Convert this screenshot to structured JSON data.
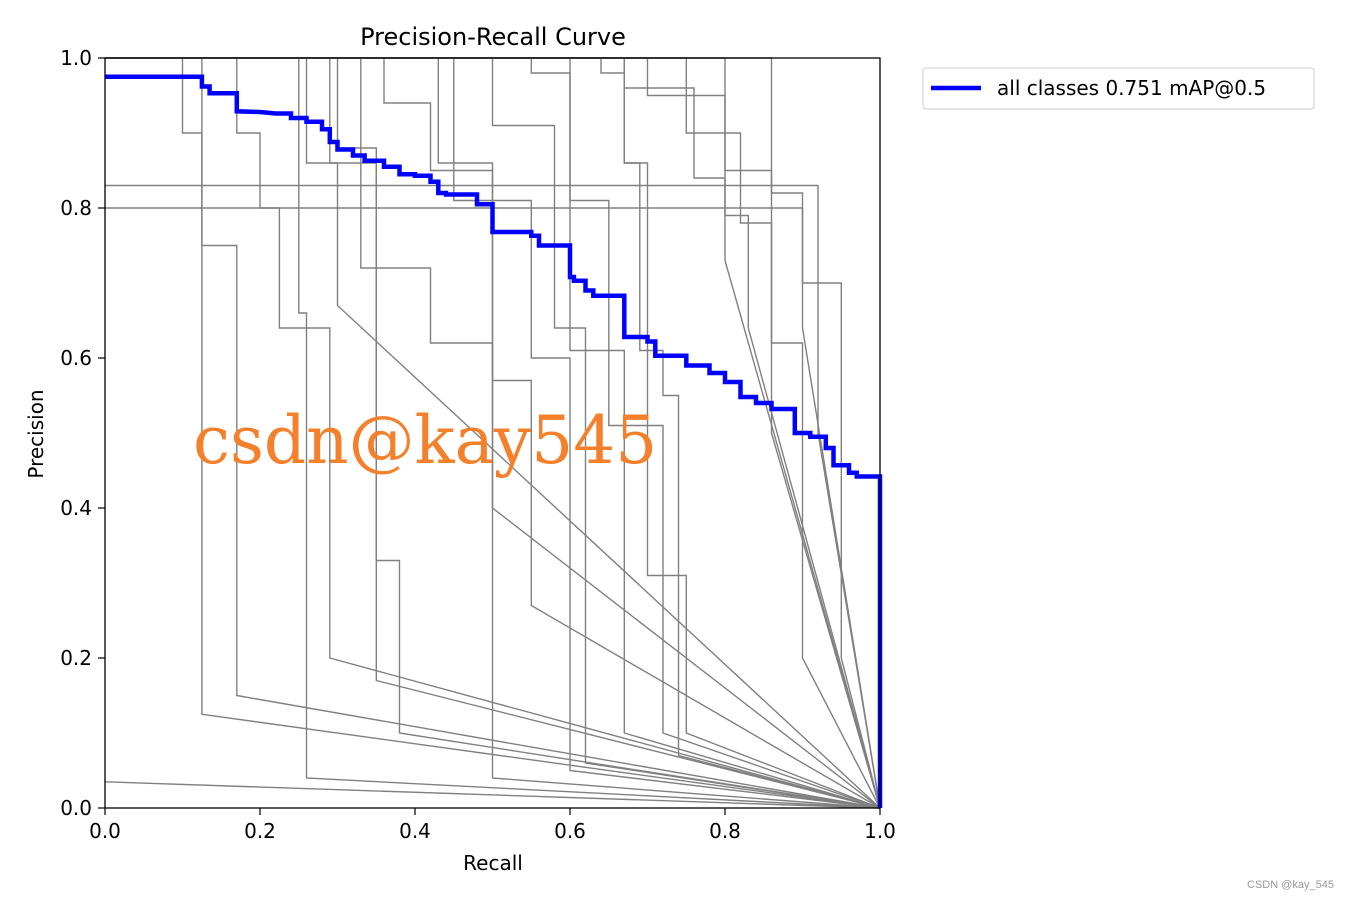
{
  "chart_data": {
    "type": "line",
    "title": "Precision-Recall Curve",
    "xlabel": "Recall",
    "ylabel": "Precision",
    "xlim": [
      0,
      1
    ],
    "ylim": [
      0,
      1
    ],
    "xticks": [
      "0.0",
      "0.2",
      "0.4",
      "0.6",
      "0.8",
      "1.0"
    ],
    "yticks": [
      "0.0",
      "0.2",
      "0.4",
      "0.6",
      "0.8",
      "1.0"
    ],
    "grid": false,
    "legend_position": "outside-top-right",
    "legend": [
      {
        "label": "all classes 0.751 mAP@0.5",
        "color": "#0000ff"
      }
    ],
    "series": [
      {
        "name": "all classes 0.751 mAP@0.5",
        "color": "#0000ff",
        "role": "summary",
        "x": [
          0.0,
          0.125,
          0.125,
          0.135,
          0.135,
          0.17,
          0.17,
          0.2,
          0.22,
          0.24,
          0.24,
          0.26,
          0.26,
          0.28,
          0.28,
          0.29,
          0.29,
          0.3,
          0.3,
          0.32,
          0.32,
          0.335,
          0.335,
          0.36,
          0.36,
          0.38,
          0.38,
          0.4,
          0.4,
          0.42,
          0.42,
          0.43,
          0.43,
          0.44,
          0.44,
          0.48,
          0.48,
          0.5,
          0.5,
          0.55,
          0.55,
          0.56,
          0.56,
          0.6,
          0.6,
          0.605,
          0.605,
          0.62,
          0.62,
          0.63,
          0.63,
          0.67,
          0.67,
          0.7,
          0.7,
          0.71,
          0.71,
          0.75,
          0.75,
          0.78,
          0.78,
          0.8,
          0.8,
          0.82,
          0.82,
          0.84,
          0.84,
          0.86,
          0.86,
          0.89,
          0.89,
          0.91,
          0.91,
          0.93,
          0.93,
          0.94,
          0.94,
          0.96,
          0.96,
          0.97,
          0.97,
          1.0,
          1.0
        ],
        "y": [
          0.975,
          0.975,
          0.962,
          0.962,
          0.953,
          0.953,
          0.929,
          0.928,
          0.926,
          0.926,
          0.92,
          0.92,
          0.915,
          0.915,
          0.905,
          0.905,
          0.888,
          0.888,
          0.878,
          0.878,
          0.87,
          0.87,
          0.863,
          0.863,
          0.855,
          0.855,
          0.845,
          0.845,
          0.843,
          0.843,
          0.835,
          0.835,
          0.82,
          0.82,
          0.818,
          0.818,
          0.805,
          0.805,
          0.768,
          0.768,
          0.763,
          0.763,
          0.75,
          0.75,
          0.708,
          0.708,
          0.703,
          0.703,
          0.69,
          0.69,
          0.683,
          0.683,
          0.628,
          0.628,
          0.622,
          0.622,
          0.603,
          0.603,
          0.59,
          0.59,
          0.58,
          0.58,
          0.568,
          0.568,
          0.548,
          0.548,
          0.54,
          0.54,
          0.532,
          0.532,
          0.5,
          0.5,
          0.495,
          0.495,
          0.48,
          0.48,
          0.457,
          0.457,
          0.447,
          0.447,
          0.442,
          0.442,
          0.0
        ]
      },
      {
        "color": "#808080",
        "x": [
          0.0,
          0.1,
          0.1,
          0.125,
          0.125,
          1.0
        ],
        "y": [
          1.0,
          1.0,
          0.9,
          0.9,
          0.125,
          0.0
        ]
      },
      {
        "color": "#808080",
        "x": [
          0.0,
          0.125,
          0.125,
          0.17,
          0.17,
          1.0
        ],
        "y": [
          1.0,
          1.0,
          0.75,
          0.75,
          0.15,
          0.0
        ]
      },
      {
        "color": "#808080",
        "x": [
          0.0,
          0.17,
          0.17,
          0.2,
          0.2,
          0.225,
          0.225,
          0.26,
          0.26,
          1.0
        ],
        "y": [
          1.0,
          1.0,
          0.9,
          0.9,
          0.8,
          0.8,
          0.64,
          0.64,
          0.04,
          0.0
        ]
      },
      {
        "color": "#808080",
        "x": [
          0.0,
          0.25,
          0.25,
          0.26,
          0.26,
          0.29,
          0.29,
          1.0
        ],
        "y": [
          1.0,
          1.0,
          0.66,
          0.66,
          0.64,
          0.64,
          0.2,
          0.0
        ]
      },
      {
        "color": "#808080",
        "x": [
          0.0,
          0.26,
          0.26,
          0.3,
          0.3,
          1.0
        ],
        "y": [
          1.0,
          1.0,
          0.86,
          0.86,
          0.67,
          0.0
        ]
      },
      {
        "color": "#808080",
        "x": [
          0.0,
          0.29,
          0.29,
          0.35,
          0.35,
          0.38,
          0.38,
          1.0
        ],
        "y": [
          1.0,
          1.0,
          0.86,
          0.86,
          0.33,
          0.33,
          0.1,
          0.0
        ]
      },
      {
        "color": "#808080",
        "x": [
          0.0,
          0.3,
          0.3,
          0.35,
          0.35,
          1.0
        ],
        "y": [
          1.0,
          1.0,
          0.88,
          0.88,
          0.17,
          0.0
        ]
      },
      {
        "color": "#808080",
        "x": [
          0.0,
          0.33,
          0.33,
          0.42,
          0.42,
          0.5,
          0.5,
          1.0
        ],
        "y": [
          1.0,
          1.0,
          0.72,
          0.72,
          0.62,
          0.62,
          0.04,
          0.0
        ]
      },
      {
        "color": "#808080",
        "x": [
          0.0,
          0.36,
          0.36,
          0.42,
          0.42,
          0.5,
          0.5,
          1.0
        ],
        "y": [
          1.0,
          1.0,
          0.94,
          0.94,
          0.85,
          0.85,
          0.4,
          0.0
        ]
      },
      {
        "color": "#808080",
        "x": [
          0.0,
          0.43,
          0.43,
          0.5,
          0.5,
          0.55,
          0.55,
          1.0
        ],
        "y": [
          1.0,
          1.0,
          0.86,
          0.86,
          0.57,
          0.57,
          0.27,
          0.0
        ]
      },
      {
        "color": "#808080",
        "x": [
          0.0,
          0.45,
          0.45,
          0.55,
          0.55,
          0.6,
          0.6,
          1.0
        ],
        "y": [
          1.0,
          1.0,
          0.81,
          0.81,
          0.6,
          0.6,
          0.05,
          0.0
        ]
      },
      {
        "color": "#808080",
        "x": [
          0.0,
          0.5,
          0.5,
          0.58,
          0.58,
          0.62,
          0.62,
          1.0
        ],
        "y": [
          1.0,
          1.0,
          0.91,
          0.91,
          0.64,
          0.64,
          0.06,
          0.0
        ]
      },
      {
        "color": "#808080",
        "x": [
          0.0,
          0.55,
          0.55,
          0.6,
          0.6,
          0.67,
          0.67,
          1.0
        ],
        "y": [
          1.0,
          1.0,
          0.98,
          0.98,
          0.61,
          0.61,
          0.1,
          0.0
        ]
      },
      {
        "color": "#808080",
        "x": [
          0.0,
          0.6,
          0.6,
          0.65,
          0.65,
          0.72,
          0.72,
          1.0
        ],
        "y": [
          1.0,
          1.0,
          0.81,
          0.81,
          0.51,
          0.51,
          0.1,
          0.0
        ]
      },
      {
        "color": "#808080",
        "x": [
          0.0,
          0.64,
          0.64,
          0.67,
          0.67,
          0.7,
          0.7,
          0.75,
          0.75,
          1.0
        ],
        "y": [
          1.0,
          1.0,
          0.98,
          0.98,
          0.86,
          0.86,
          0.31,
          0.31,
          0.1,
          0.0
        ]
      },
      {
        "color": "#808080",
        "x": [
          0.0,
          0.67,
          0.67,
          0.69,
          0.69,
          0.72,
          0.72,
          0.74,
          0.74,
          1.0
        ],
        "y": [
          1.0,
          1.0,
          0.86,
          0.86,
          0.61,
          0.61,
          0.55,
          0.55,
          0.07,
          0.0
        ]
      },
      {
        "color": "#808080",
        "x": [
          0.0,
          0.67,
          0.67,
          0.76,
          0.76,
          0.8,
          0.8,
          1.0
        ],
        "y": [
          1.0,
          1.0,
          0.96,
          0.96,
          0.84,
          0.84,
          0.73,
          0.0
        ]
      },
      {
        "color": "#808080",
        "x": [
          0.0,
          0.7,
          0.7,
          0.8,
          0.8,
          0.83,
          0.83,
          1.0
        ],
        "y": [
          1.0,
          1.0,
          0.95,
          0.95,
          0.79,
          0.79,
          0.64,
          0.0
        ]
      },
      {
        "color": "#808080",
        "x": [
          0.0,
          0.75,
          0.75,
          0.82,
          0.82,
          0.86,
          0.86,
          1.0
        ],
        "y": [
          1.0,
          1.0,
          0.9,
          0.9,
          0.78,
          0.78,
          0.5,
          0.0
        ]
      },
      {
        "color": "#808080",
        "x": [
          0.0,
          0.8,
          0.8,
          0.86,
          0.86,
          0.9,
          0.9,
          1.0
        ],
        "y": [
          1.0,
          1.0,
          0.85,
          0.85,
          0.62,
          0.62,
          0.2,
          0.0
        ]
      },
      {
        "color": "#808080",
        "x": [
          0.0,
          0.86,
          0.86,
          0.9,
          0.9,
          0.95,
          0.95,
          1.0
        ],
        "y": [
          1.0,
          1.0,
          0.82,
          0.82,
          0.7,
          0.7,
          0.2,
          0.0
        ]
      },
      {
        "color": "#808080",
        "x": [
          0.0,
          0.9,
          0.9,
          1.0
        ],
        "y": [
          0.8,
          0.8,
          0.64,
          0.0
        ]
      },
      {
        "color": "#808080",
        "x": [
          0.0,
          0.92,
          0.92,
          1.0
        ],
        "y": [
          0.83,
          0.83,
          0.5,
          0.0
        ]
      },
      {
        "color": "#808080",
        "x": [
          0.0,
          1.0
        ],
        "y": [
          0.035,
          0.0
        ]
      }
    ]
  },
  "watermark": "csdn@kay545",
  "credit": "CSDN @kay_545"
}
